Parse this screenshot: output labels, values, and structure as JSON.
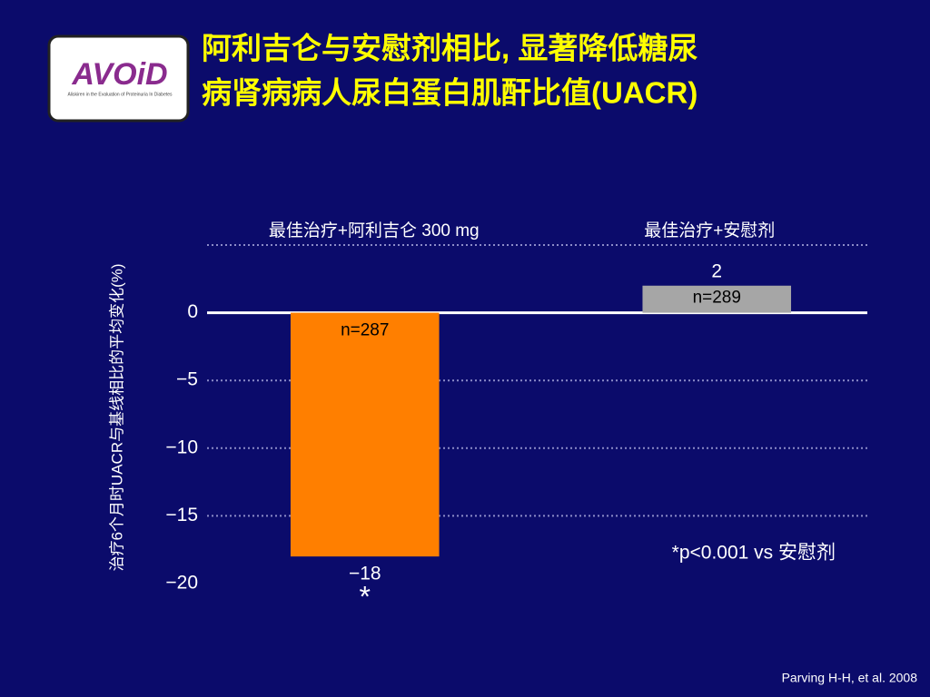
{
  "title": [
    "阿利吉仑与安慰剂相比, 显著降低糖尿",
    "病肾病病人尿白蛋白肌酐比值(UACR)"
  ],
  "logo": {
    "name": "AVOiD",
    "tagline": "Aliskiren in the Evaluation of Proteinuria In Diabetes"
  },
  "chart_data": {
    "type": "bar",
    "y_label": "治疗6个月时UACR与基线相比的平均变化(%)",
    "categories": [
      "最佳治疗+阿利吉仑 300 mg",
      "最佳治疗+安慰剂"
    ],
    "values": [
      -18,
      2
    ],
    "value_labels": [
      "−18",
      "2"
    ],
    "sample_sizes": [
      "n=287",
      "n=289"
    ],
    "colors": [
      "#ff7f00",
      "#a6a6a6"
    ],
    "significance_mark": "*",
    "ylim": [
      -20,
      5
    ],
    "yticks": [
      {
        "value": 0,
        "label": "0"
      },
      {
        "value": -5,
        "label": "−5"
      },
      {
        "value": -10,
        "label": "−10"
      },
      {
        "value": -15,
        "label": "−15"
      },
      {
        "value": -20,
        "label": "−20"
      }
    ],
    "grid": true,
    "footnote": "*p<0.001 vs 安慰剂"
  },
  "citation": "Parving H-H, et al. 2008"
}
